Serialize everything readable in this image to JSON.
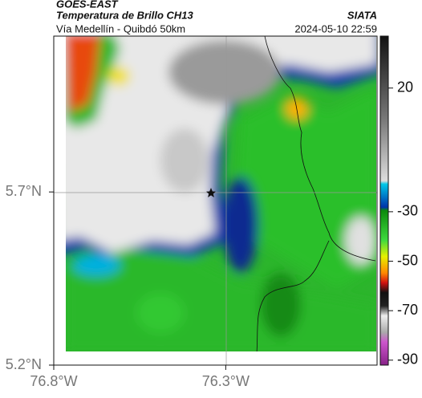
{
  "header": {
    "title": "GOES-EAST",
    "subtitle": "Temperatura de Brillo CH13",
    "route": "Vía Medellín - Quibdó 50km",
    "source": "SIATA",
    "datetime": "2024-05-10 22:59"
  },
  "map": {
    "lat_range": [
      5.2,
      6.15
    ],
    "lon_range": [
      -76.8,
      -75.86
    ],
    "lat_ticks": [
      {
        "value": 5.7,
        "label": "5.7°N"
      },
      {
        "value": 5.2,
        "label": "5.2°N"
      }
    ],
    "lon_ticks": [
      {
        "value": -76.8,
        "label": "76.8°W"
      },
      {
        "value": -76.3,
        "label": "76.3°W"
      }
    ]
  },
  "colorbar": {
    "range": [
      -92,
      41
    ],
    "ticks": [
      20,
      -30,
      -50,
      -70,
      -90
    ]
  }
}
